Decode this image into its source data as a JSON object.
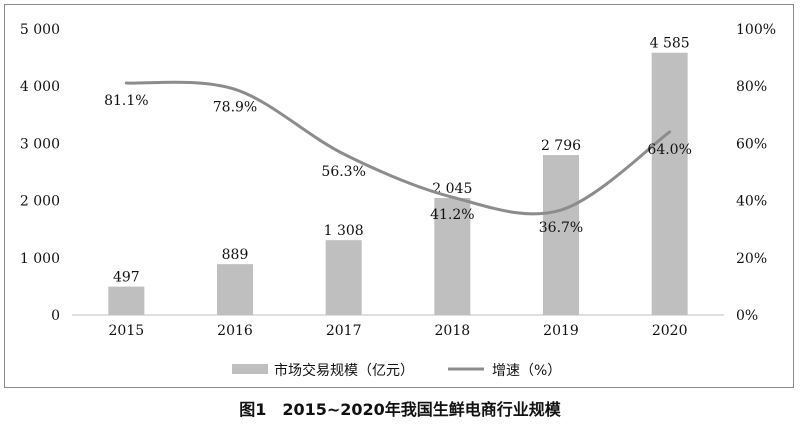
{
  "caption": "图1　2015~2020年我国生鲜电商行业规模",
  "colors": {
    "bar": "#bfbfbf",
    "line": "#8c8c8c",
    "axis": "#bfbfbf",
    "text": "#111111"
  },
  "chart_data": {
    "type": "bar+line",
    "categories": [
      "2015",
      "2016",
      "2017",
      "2018",
      "2019",
      "2020"
    ],
    "series": [
      {
        "name": "市场交易规模（亿元）",
        "type": "bar",
        "axis": "left",
        "values": [
          497,
          889,
          1308,
          2045,
          2796,
          4585
        ],
        "labels": [
          "497",
          "889",
          "1 308",
          "2 045",
          "2 796",
          "4 585"
        ]
      },
      {
        "name": "增速（%）",
        "type": "line",
        "axis": "right",
        "values": [
          81.1,
          78.9,
          56.3,
          41.2,
          36.7,
          64.0
        ],
        "labels": [
          "81.1%",
          "78.9%",
          "56.3%",
          "41.2%",
          "36.7%",
          "64.0%"
        ]
      }
    ],
    "y_left": {
      "range": [
        0,
        5000
      ],
      "ticks": [
        "0",
        "1 000",
        "2 000",
        "3 000",
        "4 000",
        "5 000"
      ]
    },
    "y_right": {
      "range": [
        0,
        100
      ],
      "ticks": [
        "0%",
        "20%",
        "40%",
        "60%",
        "80%",
        "100%"
      ]
    },
    "grid": false,
    "legend_position": "bottom"
  }
}
